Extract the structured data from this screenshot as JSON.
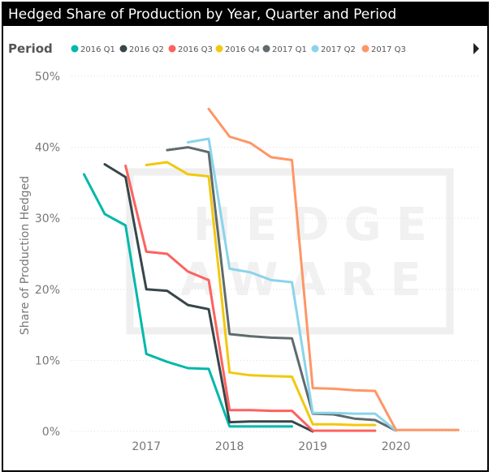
{
  "title": "Hedged Share of Production by Year, Quarter and Period",
  "legend_title": "Period",
  "watermark": [
    "HEDGE",
    "AWARE"
  ],
  "chart_data": {
    "type": "line",
    "title": "Hedged Share of Production by Year, Quarter and Period",
    "xlabel": "",
    "ylabel": "Share of Production Hedged",
    "xlim": [
      2016.1,
      2021.0
    ],
    "ylim": [
      0,
      50
    ],
    "y_ticks": [
      "0%",
      "10%",
      "20%",
      "30%",
      "40%",
      "50%"
    ],
    "x_ticks": [
      "2017",
      "2018",
      "2019",
      "2020"
    ],
    "grid": "horizontal",
    "legend_position": "top",
    "series": [
      {
        "name": "2016 Q1",
        "color": "#01B8AA",
        "x": [
          2016.25,
          2016.5,
          2016.75,
          2017.0,
          2017.25,
          2017.5,
          2017.75,
          2018.0,
          2018.25,
          2018.5,
          2018.75
        ],
        "y": [
          36.2,
          30.6,
          29.0,
          10.9,
          9.8,
          8.9,
          8.8,
          0.7,
          0.7,
          0.7,
          0.7
        ]
      },
      {
        "name": "2016 Q2",
        "color": "#374649",
        "x": [
          2016.5,
          2016.75,
          2017.0,
          2017.25,
          2017.5,
          2017.75,
          2018.0,
          2018.25,
          2018.5,
          2018.75,
          2019.0
        ],
        "y": [
          37.6,
          35.8,
          20.0,
          19.8,
          17.8,
          17.2,
          1.3,
          1.4,
          1.4,
          1.4,
          0.0
        ]
      },
      {
        "name": "2016 Q3",
        "color": "#FD625E",
        "x": [
          2016.75,
          2017.0,
          2017.25,
          2017.5,
          2017.75,
          2018.0,
          2018.25,
          2018.5,
          2018.75,
          2019.0,
          2019.25,
          2019.5,
          2019.75
        ],
        "y": [
          37.4,
          25.3,
          25.0,
          22.5,
          21.3,
          3.0,
          3.0,
          2.9,
          2.9,
          0.1,
          0.1,
          0.1,
          0.1
        ]
      },
      {
        "name": "2016 Q4",
        "color": "#F2C80F",
        "x": [
          2017.0,
          2017.25,
          2017.5,
          2017.75,
          2018.0,
          2018.25,
          2018.5,
          2018.75,
          2019.0,
          2019.25,
          2019.5,
          2019.75
        ],
        "y": [
          37.5,
          37.9,
          36.2,
          35.9,
          8.3,
          7.9,
          7.8,
          7.7,
          1.0,
          1.0,
          0.9,
          0.9
        ]
      },
      {
        "name": "2017 Q1",
        "color": "#5F6B6D",
        "x": [
          2017.25,
          2017.5,
          2017.75,
          2018.0,
          2018.25,
          2018.5,
          2018.75,
          2019.0,
          2019.25,
          2019.5,
          2019.75,
          2020.0
        ],
        "y": [
          39.6,
          40.0,
          39.3,
          13.7,
          13.4,
          13.2,
          13.1,
          2.5,
          2.4,
          1.8,
          1.6,
          0.1
        ]
      },
      {
        "name": "2017 Q2",
        "color": "#8AD4EB",
        "x": [
          2017.5,
          2017.75,
          2018.0,
          2018.25,
          2018.5,
          2018.75,
          2019.0,
          2019.25,
          2019.5,
          2019.75,
          2020.0
        ],
        "y": [
          40.7,
          41.2,
          22.9,
          22.4,
          21.3,
          21.0,
          2.6,
          2.6,
          2.5,
          2.5,
          0.1
        ]
      },
      {
        "name": "2017 Q3",
        "color": "#FE9666",
        "x": [
          2017.75,
          2018.0,
          2018.25,
          2018.5,
          2018.75,
          2019.0,
          2019.25,
          2019.5,
          2019.75,
          2020.0,
          2020.25,
          2020.5,
          2020.75
        ],
        "y": [
          45.4,
          41.5,
          40.6,
          38.6,
          38.2,
          6.1,
          6.0,
          5.8,
          5.7,
          0.2,
          0.2,
          0.2,
          0.2
        ]
      }
    ]
  }
}
